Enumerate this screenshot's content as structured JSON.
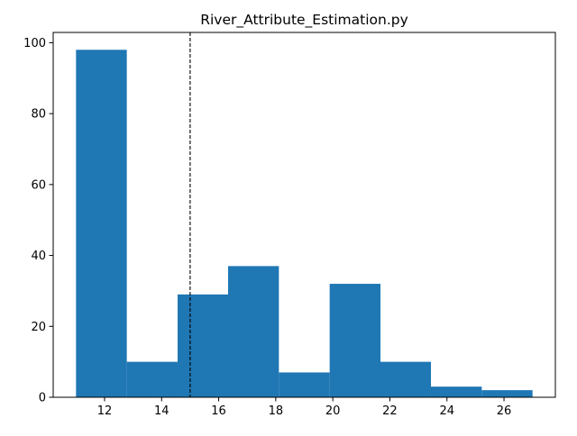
{
  "chart_data": {
    "type": "bar",
    "subtype": "histogram",
    "title": "River_Attribute_Estimation.py",
    "xlabel": "",
    "ylabel": "",
    "bins": [
      {
        "start": 11.0,
        "end": 12.78,
        "count": 98
      },
      {
        "start": 12.78,
        "end": 14.56,
        "count": 10
      },
      {
        "start": 14.56,
        "end": 16.33,
        "count": 29
      },
      {
        "start": 16.33,
        "end": 18.11,
        "count": 37
      },
      {
        "start": 18.11,
        "end": 19.89,
        "count": 7
      },
      {
        "start": 19.89,
        "end": 21.67,
        "count": 32
      },
      {
        "start": 21.67,
        "end": 23.44,
        "count": 10
      },
      {
        "start": 23.44,
        "end": 25.22,
        "count": 3
      },
      {
        "start": 25.22,
        "end": 27.0,
        "count": 2
      }
    ],
    "xlim": [
      10.2,
      27.8
    ],
    "ylim": [
      0,
      102.9
    ],
    "xticks": [
      12,
      14,
      16,
      18,
      20,
      22,
      24,
      26
    ],
    "yticks": [
      0,
      20,
      40,
      60,
      80,
      100
    ],
    "reference_line": {
      "x": 15.0,
      "style": "dashed",
      "color": "#000000"
    },
    "bar_color": "#1f77b4",
    "grid": false,
    "legend": "none"
  }
}
